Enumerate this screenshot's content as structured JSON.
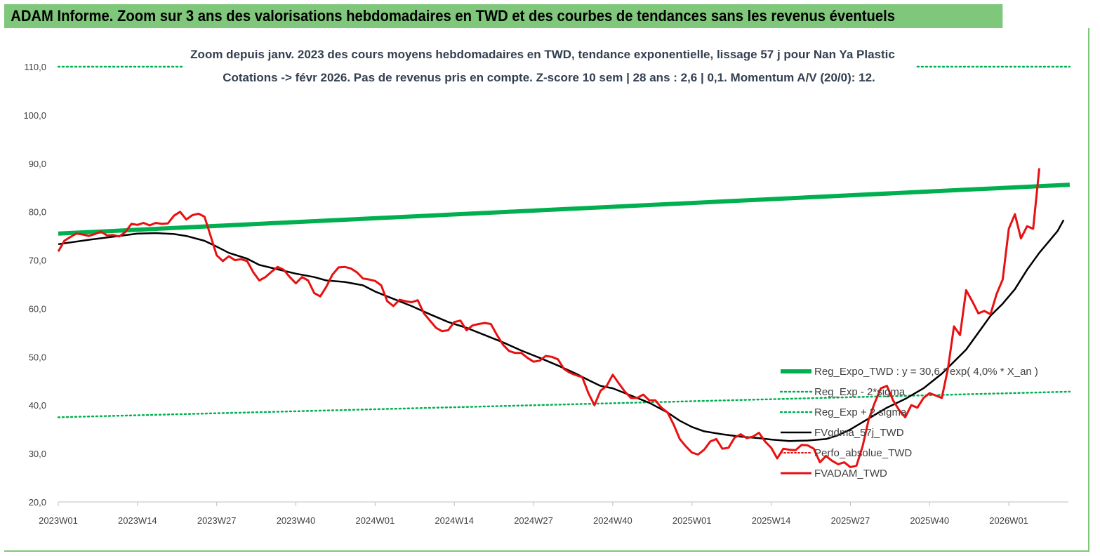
{
  "header": {
    "title": "ADAM Informe. Zoom sur 3 ans des valorisations hebdomadaires en TWD et des courbes de tendances sans les revenus éventuels"
  },
  "chart_data": {
    "type": "line",
    "subtitle_line1": "Zoom depuis janv. 2023 des cours moyens hebdomadaires en TWD, tendance exponentielle, lissage 57 j pour Nan Ya Plastic",
    "subtitle_line2": "Cotations -> févr 2026.  Pas de revenus pris en compte. Z-score 10 sem  | 28 ans : 2,6  | 0,1. Momentum A/V (20/0): 12.",
    "ylim": [
      20,
      110
    ],
    "yticks": [
      "20,0",
      "30,0",
      "40,0",
      "50,0",
      "60,0",
      "70,0",
      "80,0",
      "90,0",
      "100,0",
      "110,0"
    ],
    "xlim": [
      0,
      162
    ],
    "xticks": [
      {
        "x": 0,
        "label": "2023W01"
      },
      {
        "x": 13,
        "label": "2023W14"
      },
      {
        "x": 26,
        "label": "2023W27"
      },
      {
        "x": 39,
        "label": "2023W40"
      },
      {
        "x": 52,
        "label": "2024W01"
      },
      {
        "x": 65,
        "label": "2024W14"
      },
      {
        "x": 78,
        "label": "2024W27"
      },
      {
        "x": 91,
        "label": "2024W40"
      },
      {
        "x": 104,
        "label": "2025W01"
      },
      {
        "x": 117,
        "label": "2025W14"
      },
      {
        "x": 130,
        "label": "2025W27"
      },
      {
        "x": 143,
        "label": "2025W40"
      },
      {
        "x": 156,
        "label": "2026W01"
      }
    ],
    "colors": {
      "green": "#00b050",
      "black": "#000000",
      "red": "#e81010",
      "dotted_red": "#e81010",
      "header": "#7fc77a"
    },
    "legend": [
      {
        "label": "Reg_Expo_TWD : y = 30,6 * exp( 4,0% *  X_an )",
        "style": "thick-green"
      },
      {
        "label": "Reg_Exp - 2*sigma",
        "style": "dotted-green"
      },
      {
        "label": "Reg_Exp + 2 sigma",
        "style": "dotted-green"
      },
      {
        "label": "FVgdma_57j_TWD",
        "style": "black"
      },
      {
        "label": "Perfo_absolue_TWD",
        "style": "dotted-red"
      },
      {
        "label": "FVADAM_TWD",
        "style": "red"
      }
    ],
    "series": [
      {
        "name": "Reg_Expo_TWD",
        "points": [
          [
            0,
            75.5
          ],
          [
            166,
            85.6
          ]
        ]
      },
      {
        "name": "Reg_Exp + 2 sigma",
        "segments": [
          [
            [
              0,
              110
            ],
            [
              20.5,
              110
            ]
          ],
          [
            [
              141,
              110
            ],
            [
              166,
              110
            ]
          ]
        ]
      },
      {
        "name": "Reg_Exp - 2*sigma",
        "points": [
          [
            0,
            37.5
          ],
          [
            166,
            42.8
          ]
        ]
      },
      {
        "name": "FVgdma_57j_TWD",
        "points": [
          [
            0,
            73.3
          ],
          [
            5,
            74.2
          ],
          [
            10,
            75.0
          ],
          [
            13,
            75.5
          ],
          [
            16,
            75.6
          ],
          [
            19,
            75.4
          ],
          [
            21,
            75.0
          ],
          [
            24,
            74.0
          ],
          [
            26,
            72.8
          ],
          [
            28,
            71.5
          ],
          [
            31,
            70.3
          ],
          [
            33,
            69.0
          ],
          [
            36,
            68.1
          ],
          [
            39,
            67.2
          ],
          [
            42,
            66.5
          ],
          [
            44,
            65.8
          ],
          [
            47,
            65.5
          ],
          [
            50,
            64.8
          ],
          [
            52,
            63.5
          ],
          [
            55,
            62.0
          ],
          [
            58,
            60.5
          ],
          [
            61,
            58.8
          ],
          [
            64,
            57.2
          ],
          [
            67,
            56.0
          ],
          [
            70,
            54.5
          ],
          [
            73,
            53.0
          ],
          [
            76,
            51.3
          ],
          [
            79,
            49.8
          ],
          [
            82,
            48.2
          ],
          [
            85,
            46.5
          ],
          [
            87,
            45.2
          ],
          [
            89,
            44.0
          ],
          [
            91,
            43.5
          ],
          [
            93,
            42.5
          ],
          [
            95,
            41.5
          ],
          [
            97,
            40.5
          ],
          [
            100,
            38.5
          ],
          [
            102,
            36.8
          ],
          [
            104,
            35.5
          ],
          [
            106,
            34.6
          ],
          [
            109,
            34.0
          ],
          [
            112,
            33.5
          ],
          [
            115,
            33.2
          ],
          [
            117,
            32.9
          ],
          [
            120,
            32.6
          ],
          [
            123,
            32.7
          ],
          [
            126,
            33.0
          ],
          [
            128,
            33.8
          ],
          [
            130,
            35.0
          ],
          [
            132,
            36.5
          ],
          [
            134,
            38.0
          ],
          [
            136,
            39.5
          ],
          [
            139,
            41.3
          ],
          [
            142,
            43.5
          ],
          [
            145,
            46.5
          ],
          [
            147,
            49.0
          ],
          [
            149,
            51.5
          ],
          [
            151,
            55.0
          ],
          [
            153,
            58.5
          ],
          [
            155,
            61.0
          ],
          [
            157,
            64.0
          ],
          [
            159,
            68.0
          ],
          [
            161,
            71.5
          ],
          [
            163,
            74.5
          ],
          [
            164,
            76.0
          ],
          [
            165,
            78.3
          ]
        ]
      },
      {
        "name": "FVADAM_TWD",
        "points": [
          [
            0,
            71.8
          ],
          [
            1,
            74.0
          ],
          [
            2,
            74.8
          ],
          [
            3,
            75.5
          ],
          [
            4,
            75.3
          ],
          [
            5,
            75.0
          ],
          [
            6,
            75.4
          ],
          [
            7,
            75.9
          ],
          [
            8,
            75.1
          ],
          [
            9,
            75.2
          ],
          [
            10,
            74.9
          ],
          [
            11,
            75.8
          ],
          [
            12,
            77.5
          ],
          [
            13,
            77.3
          ],
          [
            14,
            77.7
          ],
          [
            15,
            77.2
          ],
          [
            16,
            77.7
          ],
          [
            17,
            77.5
          ],
          [
            18,
            77.6
          ],
          [
            19,
            79.2
          ],
          [
            20,
            80.0
          ],
          [
            21,
            78.4
          ],
          [
            22,
            79.3
          ],
          [
            23,
            79.6
          ],
          [
            24,
            79.0
          ],
          [
            25,
            75.0
          ],
          [
            26,
            71.0
          ],
          [
            27,
            69.8
          ],
          [
            28,
            70.8
          ],
          [
            29,
            70.0
          ],
          [
            30,
            70.2
          ],
          [
            31,
            69.8
          ],
          [
            32,
            67.5
          ],
          [
            33,
            65.8
          ],
          [
            34,
            66.5
          ],
          [
            35,
            67.6
          ],
          [
            36,
            68.6
          ],
          [
            37,
            68.0
          ],
          [
            38,
            66.5
          ],
          [
            39,
            65.2
          ],
          [
            40,
            66.5
          ],
          [
            41,
            65.8
          ],
          [
            42,
            63.2
          ],
          [
            43,
            62.5
          ],
          [
            44,
            64.5
          ],
          [
            45,
            67.0
          ],
          [
            46,
            68.5
          ],
          [
            47,
            68.6
          ],
          [
            48,
            68.3
          ],
          [
            49,
            67.5
          ],
          [
            50,
            66.2
          ],
          [
            51,
            66.0
          ],
          [
            52,
            65.7
          ],
          [
            53,
            64.8
          ],
          [
            54,
            61.5
          ],
          [
            55,
            60.5
          ],
          [
            56,
            61.8
          ],
          [
            57,
            61.5
          ],
          [
            58,
            61.3
          ],
          [
            59,
            61.7
          ],
          [
            60,
            59.0
          ],
          [
            61,
            57.5
          ],
          [
            62,
            56.0
          ],
          [
            63,
            55.3
          ],
          [
            64,
            55.5
          ],
          [
            65,
            57.2
          ],
          [
            66,
            57.5
          ],
          [
            67,
            55.5
          ],
          [
            68,
            56.5
          ],
          [
            69,
            56.8
          ],
          [
            70,
            57.0
          ],
          [
            71,
            56.8
          ],
          [
            72,
            54.5
          ],
          [
            73,
            52.5
          ],
          [
            74,
            51.2
          ],
          [
            75,
            50.8
          ],
          [
            76,
            50.8
          ],
          [
            77,
            49.8
          ],
          [
            78,
            49.0
          ],
          [
            79,
            49.2
          ],
          [
            80,
            50.2
          ],
          [
            81,
            50.0
          ],
          [
            82,
            49.5
          ],
          [
            83,
            47.5
          ],
          [
            84,
            46.7
          ],
          [
            85,
            46.2
          ],
          [
            86,
            45.8
          ],
          [
            87,
            42.5
          ],
          [
            88,
            40.0
          ],
          [
            89,
            43.0
          ],
          [
            90,
            44.0
          ],
          [
            91,
            46.3
          ],
          [
            92,
            44.5
          ],
          [
            93,
            42.8
          ],
          [
            94,
            41.5
          ],
          [
            95,
            41.5
          ],
          [
            96,
            42.2
          ],
          [
            97,
            41.0
          ],
          [
            98,
            41.0
          ],
          [
            99,
            39.5
          ],
          [
            100,
            38.5
          ],
          [
            101,
            36.0
          ],
          [
            102,
            33.0
          ],
          [
            103,
            31.5
          ],
          [
            104,
            30.2
          ],
          [
            105,
            29.8
          ],
          [
            106,
            30.8
          ],
          [
            107,
            32.5
          ],
          [
            108,
            33.0
          ],
          [
            109,
            31.0
          ],
          [
            110,
            31.2
          ],
          [
            111,
            33.3
          ],
          [
            112,
            34.0
          ],
          [
            113,
            33.2
          ],
          [
            114,
            33.5
          ],
          [
            115,
            34.3
          ],
          [
            116,
            32.5
          ],
          [
            117,
            31.2
          ],
          [
            118,
            29.0
          ],
          [
            119,
            31.0
          ],
          [
            120,
            30.8
          ],
          [
            121,
            30.7
          ],
          [
            122,
            31.8
          ],
          [
            123,
            31.7
          ],
          [
            124,
            31.0
          ],
          [
            125,
            28.2
          ],
          [
            126,
            29.5
          ],
          [
            127,
            28.5
          ],
          [
            128,
            27.8
          ],
          [
            129,
            28.2
          ],
          [
            130,
            27.2
          ],
          [
            131,
            27.5
          ],
          [
            132,
            31.5
          ],
          [
            133,
            37.0
          ],
          [
            134,
            40.5
          ],
          [
            135,
            43.5
          ],
          [
            136,
            44.0
          ],
          [
            137,
            41.0
          ],
          [
            138,
            39.0
          ],
          [
            139,
            37.5
          ],
          [
            140,
            40.0
          ],
          [
            141,
            39.5
          ],
          [
            142,
            41.5
          ],
          [
            143,
            42.5
          ],
          [
            144,
            42.0
          ],
          [
            145,
            41.5
          ],
          [
            146,
            47.5
          ],
          [
            147,
            56.3
          ],
          [
            148,
            54.5
          ],
          [
            149,
            63.8
          ],
          [
            150,
            61.5
          ],
          [
            151,
            59.0
          ],
          [
            152,
            59.5
          ],
          [
            153,
            58.8
          ],
          [
            154,
            63.0
          ],
          [
            155,
            66.0
          ],
          [
            156,
            76.5
          ],
          [
            157,
            79.5
          ],
          [
            158,
            74.5
          ],
          [
            159,
            77.0
          ],
          [
            160,
            76.5
          ],
          [
            161,
            89.0
          ]
        ]
      }
    ]
  }
}
